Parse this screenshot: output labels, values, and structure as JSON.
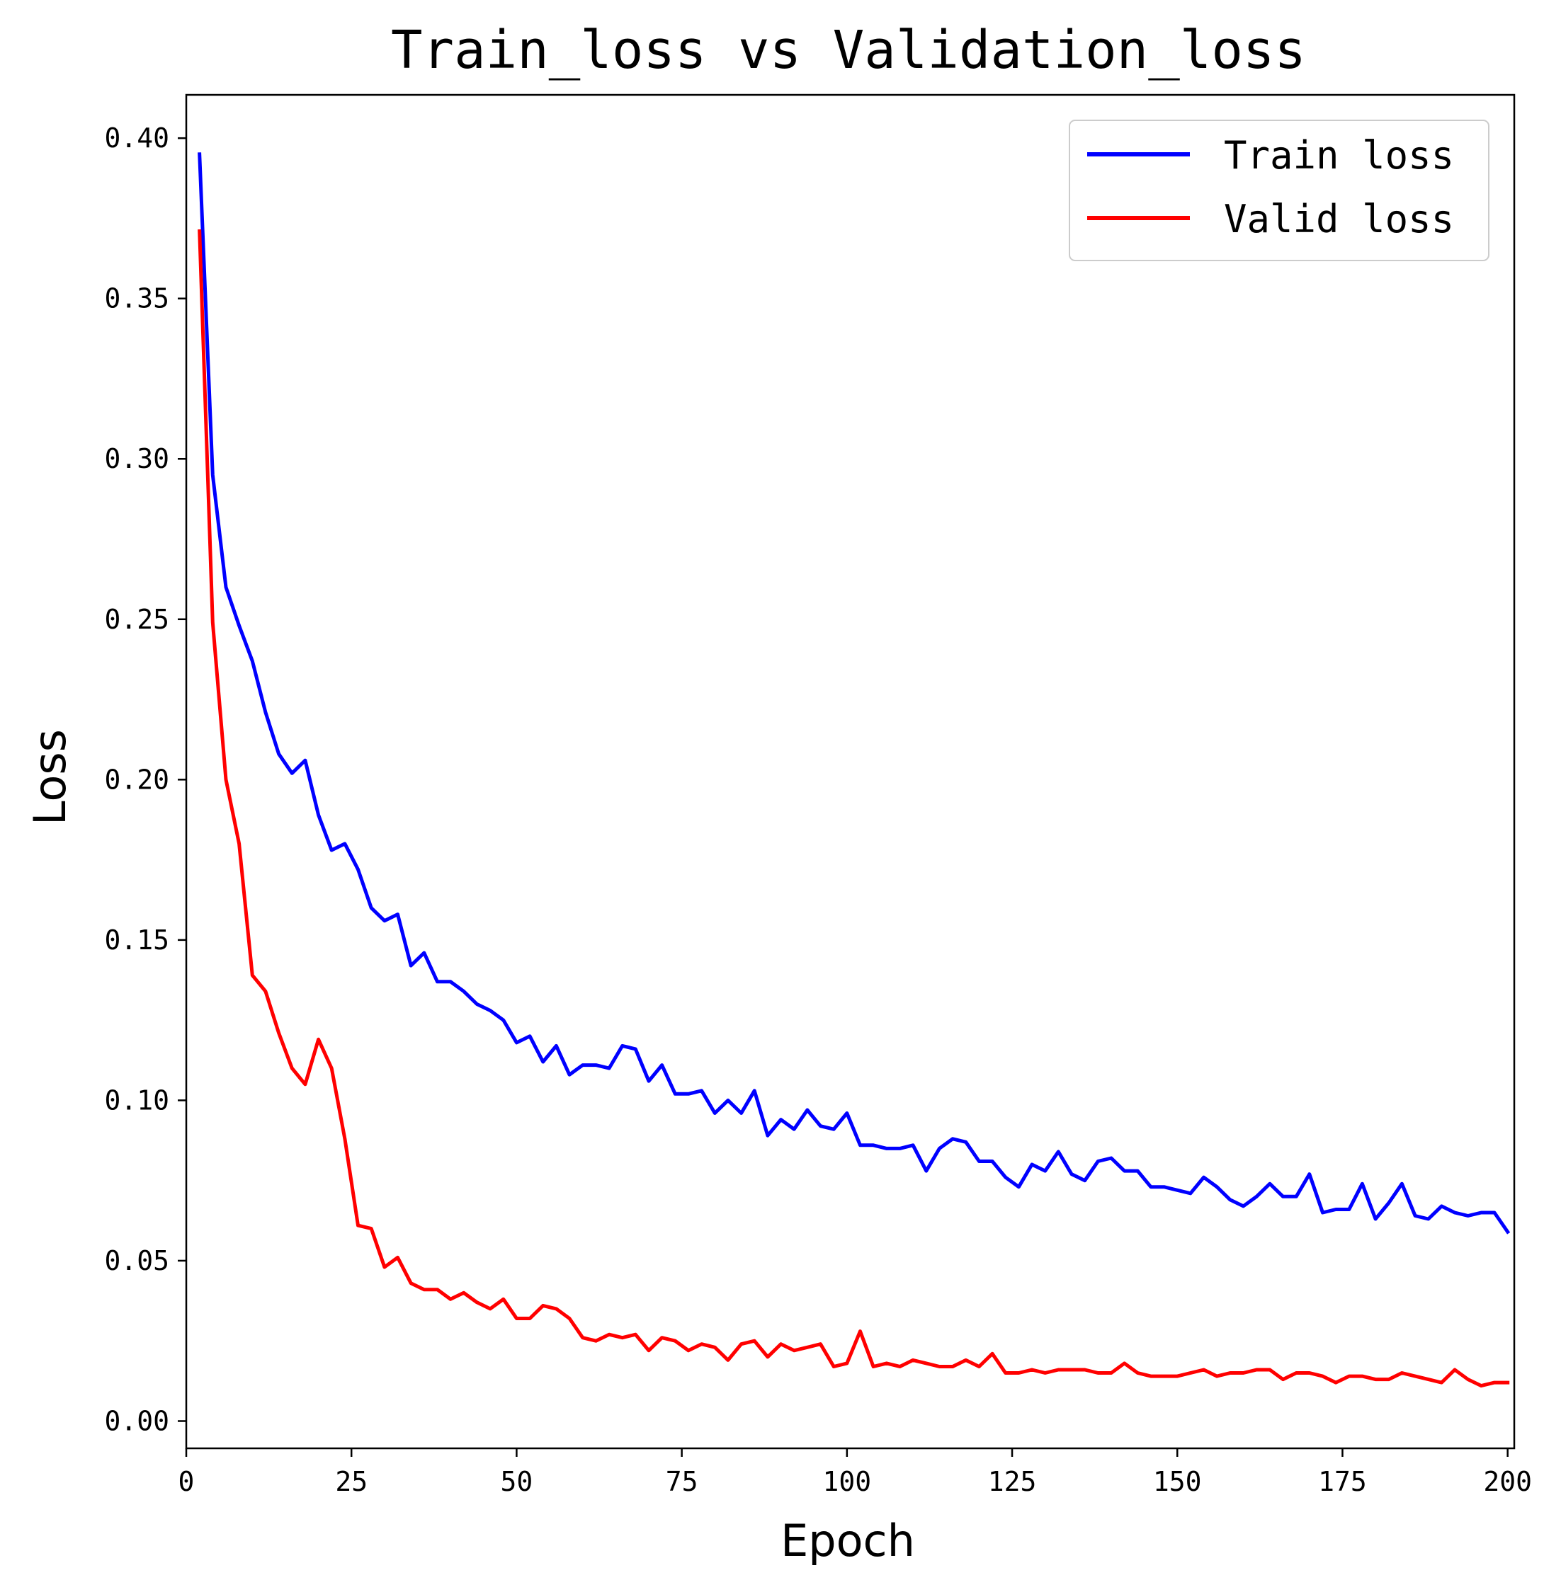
{
  "chart_data": {
    "type": "line",
    "title": "Train_loss vs Validation_loss",
    "xlabel": "Epoch",
    "ylabel": "Loss",
    "xlim": [
      0,
      201
    ],
    "ylim": [
      -0.0085,
      0.4135
    ],
    "xticks": [
      0,
      25,
      50,
      75,
      100,
      125,
      150,
      175,
      200
    ],
    "xtick_labels": [
      "0",
      "25",
      "50",
      "75",
      "100",
      "125",
      "150",
      "175",
      "200"
    ],
    "yticks": [
      0.0,
      0.05,
      0.1,
      0.15,
      0.2,
      0.25,
      0.3,
      0.35,
      0.4
    ],
    "ytick_labels": [
      "0.00",
      "0.05",
      "0.10",
      "0.15",
      "0.20",
      "0.25",
      "0.30",
      "0.35",
      "0.40"
    ],
    "legend_position": "top-right",
    "grid": false,
    "x": [
      2,
      4,
      6,
      8,
      10,
      12,
      14,
      16,
      18,
      20,
      22,
      24,
      26,
      28,
      30,
      32,
      34,
      36,
      38,
      40,
      42,
      44,
      46,
      48,
      50,
      52,
      54,
      56,
      58,
      60,
      62,
      64,
      66,
      68,
      70,
      72,
      74,
      76,
      78,
      80,
      82,
      84,
      86,
      88,
      90,
      92,
      94,
      96,
      98,
      100,
      102,
      104,
      106,
      108,
      110,
      112,
      114,
      116,
      118,
      120,
      122,
      124,
      126,
      128,
      130,
      132,
      134,
      136,
      138,
      140,
      142,
      144,
      146,
      148,
      150,
      152,
      154,
      156,
      158,
      160,
      162,
      164,
      166,
      168,
      170,
      172,
      174,
      176,
      178,
      180,
      182,
      184,
      186,
      188,
      190,
      192,
      194,
      196,
      198,
      200
    ],
    "series": [
      {
        "name": "Train loss",
        "color": "#0000ff",
        "values": [
          0.395,
          0.295,
          0.26,
          0.248,
          0.237,
          0.221,
          0.208,
          0.202,
          0.206,
          0.189,
          0.178,
          0.18,
          0.172,
          0.16,
          0.156,
          0.158,
          0.142,
          0.146,
          0.137,
          0.137,
          0.134,
          0.13,
          0.128,
          0.125,
          0.118,
          0.12,
          0.112,
          0.117,
          0.108,
          0.111,
          0.111,
          0.11,
          0.117,
          0.116,
          0.106,
          0.111,
          0.102,
          0.102,
          0.103,
          0.096,
          0.1,
          0.096,
          0.103,
          0.089,
          0.094,
          0.091,
          0.097,
          0.092,
          0.091,
          0.096,
          0.086,
          0.086,
          0.085,
          0.085,
          0.086,
          0.078,
          0.085,
          0.088,
          0.087,
          0.081,
          0.081,
          0.076,
          0.073,
          0.08,
          0.078,
          0.084,
          0.077,
          0.075,
          0.081,
          0.082,
          0.078,
          0.078,
          0.073,
          0.073,
          0.072,
          0.071,
          0.076,
          0.073,
          0.069,
          0.067,
          0.07,
          0.074,
          0.07,
          0.07,
          0.077,
          0.065,
          0.066,
          0.066,
          0.074,
          0.063,
          0.068,
          0.074,
          0.064,
          0.063,
          0.067,
          0.065,
          0.064,
          0.065,
          0.065,
          0.059
        ]
      },
      {
        "name": "Valid loss",
        "color": "#ff0000",
        "values": [
          0.371,
          0.249,
          0.2,
          0.18,
          0.139,
          0.134,
          0.121,
          0.11,
          0.105,
          0.119,
          0.11,
          0.088,
          0.061,
          0.06,
          0.048,
          0.051,
          0.043,
          0.041,
          0.041,
          0.038,
          0.04,
          0.037,
          0.035,
          0.038,
          0.032,
          0.032,
          0.036,
          0.035,
          0.032,
          0.026,
          0.025,
          0.027,
          0.026,
          0.027,
          0.022,
          0.026,
          0.025,
          0.022,
          0.024,
          0.023,
          0.019,
          0.024,
          0.025,
          0.02,
          0.024,
          0.022,
          0.023,
          0.024,
          0.017,
          0.018,
          0.028,
          0.017,
          0.018,
          0.017,
          0.019,
          0.018,
          0.017,
          0.017,
          0.019,
          0.017,
          0.021,
          0.015,
          0.015,
          0.016,
          0.015,
          0.016,
          0.016,
          0.016,
          0.015,
          0.015,
          0.018,
          0.015,
          0.014,
          0.014,
          0.014,
          0.015,
          0.016,
          0.014,
          0.015,
          0.015,
          0.016,
          0.016,
          0.013,
          0.015,
          0.015,
          0.014,
          0.012,
          0.014,
          0.014,
          0.013,
          0.013,
          0.015,
          0.014,
          0.013,
          0.012,
          0.016,
          0.013,
          0.011,
          0.012,
          0.012
        ]
      }
    ]
  }
}
